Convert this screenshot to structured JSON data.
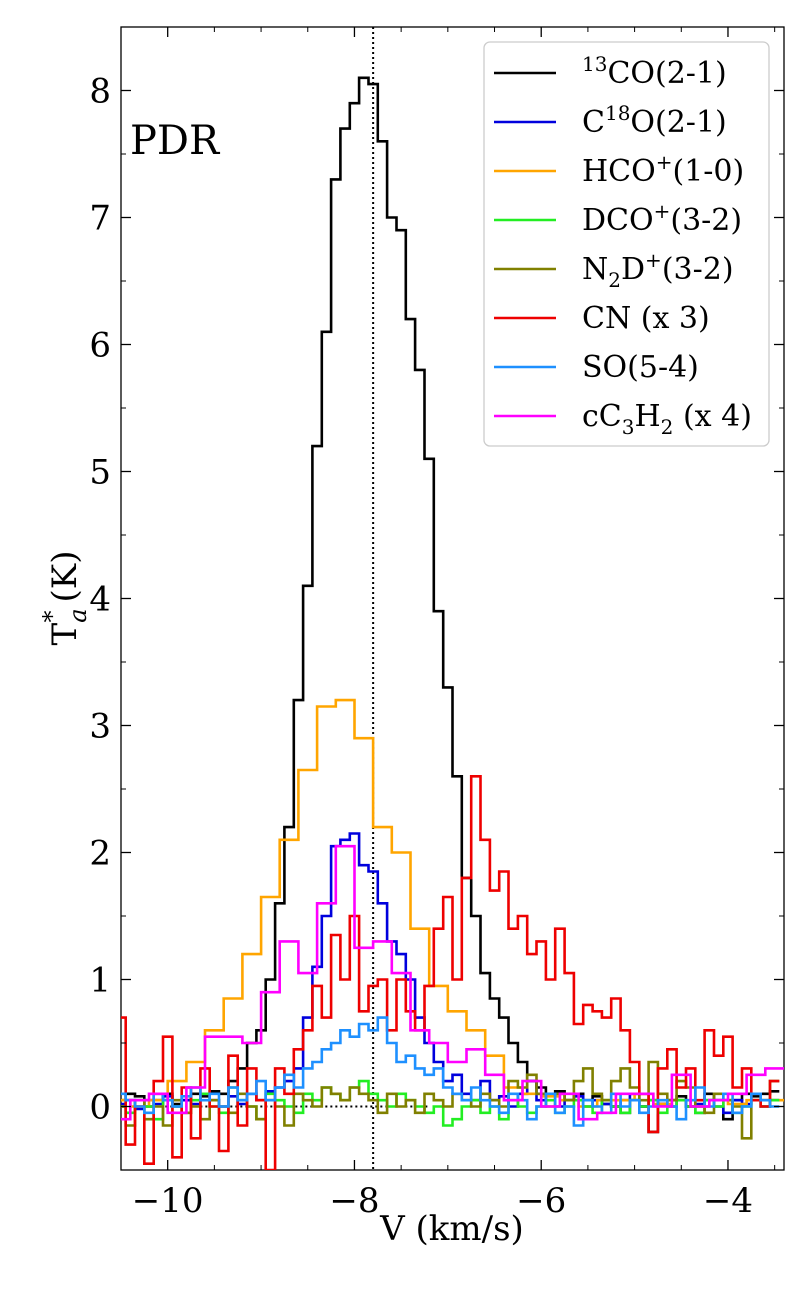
{
  "chart_data": {
    "type": "line",
    "panel_label": "PDR",
    "xlabel": "V (km/s)",
    "ylabel": "T",
    "ylabel_sup": "*",
    "ylabel_sub": "a",
    "ylabel_unit": "(K)",
    "xlim": [
      -10.5,
      -3.4
    ],
    "ylim": [
      -0.5,
      8.5
    ],
    "x_ticks": [
      -10,
      -8,
      -6,
      -4
    ],
    "x_tick_labels": [
      "−10",
      "−8",
      "−6",
      "−4"
    ],
    "y_ticks": [
      0,
      1,
      2,
      3,
      4,
      5,
      6,
      7,
      8
    ],
    "y_tick_labels": [
      "0",
      "1",
      "2",
      "3",
      "4",
      "5",
      "6",
      "7",
      "8"
    ],
    "vline_x": -7.8,
    "legend_position": "top-right",
    "channel_width": 0.1,
    "series": [
      {
        "name": "13CO(2-1)",
        "legend": [
          "",
          "13",
          "CO(2-1)"
        ],
        "color": "#000000",
        "x": [
          -10.5,
          -10.4,
          -10.3,
          -10.2,
          -10.1,
          -10.0,
          -9.9,
          -9.8,
          -9.7,
          -9.6,
          -9.5,
          -9.4,
          -9.3,
          -9.2,
          -9.1,
          -9.0,
          -8.9,
          -8.8,
          -8.7,
          -8.6,
          -8.5,
          -8.4,
          -8.3,
          -8.2,
          -8.1,
          -8.0,
          -7.9,
          -7.8,
          -7.7,
          -7.6,
          -7.5,
          -7.4,
          -7.3,
          -7.2,
          -7.1,
          -7.0,
          -6.9,
          -6.8,
          -6.7,
          -6.6,
          -6.5,
          -6.4,
          -6.3,
          -6.2,
          -6.1,
          -6.0,
          -5.9,
          -5.8,
          -5.7,
          -5.6,
          -5.5,
          -5.4,
          -5.3,
          -5.2,
          -5.1,
          -5.0,
          -4.9,
          -4.8,
          -4.7,
          -4.6,
          -4.5,
          -4.4,
          -4.3,
          -4.2,
          -4.1,
          -4.0,
          -3.9,
          -3.8,
          -3.7,
          -3.6,
          -3.5
        ],
        "y": [
          0.05,
          0.1,
          0.08,
          0.0,
          0.05,
          0.1,
          0.02,
          0.05,
          0.1,
          0.08,
          0.12,
          0.1,
          0.2,
          0.3,
          0.5,
          0.6,
          1.0,
          1.6,
          2.2,
          3.2,
          4.1,
          5.2,
          6.1,
          7.3,
          7.7,
          7.9,
          8.1,
          8.05,
          7.6,
          7.0,
          6.9,
          6.2,
          5.8,
          5.1,
          3.9,
          3.3,
          2.6,
          1.8,
          1.5,
          1.05,
          0.85,
          0.7,
          0.5,
          0.35,
          0.2,
          0.15,
          0.1,
          0.12,
          0.05,
          0.1,
          0.05,
          0.08,
          0.02,
          0.0,
          -0.05,
          0.05,
          0.0,
          -0.2,
          0.02,
          0.05,
          0.08,
          0.0,
          -0.05,
          0.1,
          0.05,
          -0.1,
          0.05,
          0.1,
          0.08,
          0.1,
          0.12
        ]
      },
      {
        "name": "C18O(2-1)",
        "legend": [
          "C",
          "18",
          "O(2-1)"
        ],
        "color": "#0000dd",
        "x": [
          -10.5,
          -10.4,
          -10.3,
          -10.2,
          -10.1,
          -10.0,
          -9.9,
          -9.8,
          -9.7,
          -9.6,
          -9.5,
          -9.4,
          -9.3,
          -9.2,
          -9.1,
          -9.0,
          -8.9,
          -8.8,
          -8.7,
          -8.6,
          -8.5,
          -8.4,
          -8.3,
          -8.2,
          -8.1,
          -8.0,
          -7.9,
          -7.8,
          -7.7,
          -7.6,
          -7.5,
          -7.4,
          -7.3,
          -7.2,
          -7.1,
          -7.0,
          -6.9,
          -6.8,
          -6.7,
          -6.6,
          -6.5,
          -6.4,
          -6.3,
          -6.2,
          -6.1,
          -6.0,
          -5.9,
          -5.8,
          -5.7,
          -5.6,
          -5.5,
          -5.4,
          -5.3,
          -5.2,
          -5.1,
          -5.0,
          -4.9,
          -4.8,
          -4.7,
          -4.6,
          -4.5,
          -4.4,
          -4.3,
          -4.2,
          -4.1,
          -4.0,
          -3.9,
          -3.8,
          -3.7,
          -3.6,
          -3.5
        ],
        "y": [
          0.02,
          0.05,
          -0.02,
          0.05,
          0.02,
          0.08,
          0.0,
          0.05,
          0.02,
          0.1,
          0.05,
          0.0,
          0.08,
          0.02,
          0.1,
          0.05,
          0.12,
          0.15,
          0.2,
          0.3,
          0.7,
          1.1,
          1.5,
          2.05,
          2.1,
          2.15,
          1.9,
          1.85,
          1.6,
          1.3,
          1.2,
          1.0,
          0.7,
          0.5,
          0.35,
          0.2,
          0.25,
          0.1,
          0.05,
          0.2,
          0.05,
          0.08,
          0.0,
          0.1,
          0.2,
          0.05,
          0.1,
          0.0,
          0.05,
          0.08,
          0.0,
          0.05,
          0.02,
          0.0,
          0.05,
          0.1,
          0.0,
          0.05,
          0.02,
          0.0,
          0.05,
          0.0,
          0.02,
          0.05,
          0.0,
          -0.05,
          0.05,
          0.02,
          0.05,
          0.0,
          0.05
        ]
      },
      {
        "name": "HCO+(1-0)",
        "legend": [
          "HCO",
          "+",
          "(1-0)"
        ],
        "color": "#ffa500",
        "x": [
          -10.5,
          -10.3,
          -10.1,
          -9.9,
          -9.7,
          -9.5,
          -9.3,
          -9.1,
          -8.9,
          -8.7,
          -8.5,
          -8.3,
          -8.1,
          -7.9,
          -7.7,
          -7.5,
          -7.3,
          -7.1,
          -6.9,
          -6.7,
          -6.5,
          -6.3,
          -6.1,
          -5.9,
          -5.7,
          -5.5,
          -5.3,
          -5.1,
          -4.9,
          -4.7,
          -4.5,
          -4.3,
          -4.1,
          -3.9,
          -3.7,
          -3.5
        ],
        "y": [
          0.05,
          0.0,
          0.05,
          0.2,
          0.35,
          0.6,
          0.85,
          1.2,
          1.65,
          2.1,
          2.65,
          3.15,
          3.2,
          2.9,
          2.2,
          2.0,
          1.4,
          0.95,
          0.75,
          0.6,
          0.4,
          0.15,
          0.1,
          0.08,
          0.05,
          0.0,
          0.05,
          0.05,
          0.1,
          0.02,
          0.05,
          0.0,
          0.05,
          0.02,
          0.05,
          0.05
        ]
      },
      {
        "name": "DCO+(3-2)",
        "legend": [
          "DCO",
          "+",
          "(3-2)"
        ],
        "color": "#22ee22",
        "x": [
          -10.5,
          -10.4,
          -10.3,
          -10.2,
          -10.1,
          -10.0,
          -9.9,
          -9.8,
          -9.7,
          -9.6,
          -9.5,
          -9.4,
          -9.3,
          -9.2,
          -9.1,
          -9.0,
          -8.9,
          -8.8,
          -8.7,
          -8.6,
          -8.5,
          -8.4,
          -8.3,
          -8.2,
          -8.1,
          -8.0,
          -7.9,
          -7.8,
          -7.7,
          -7.6,
          -7.5,
          -7.4,
          -7.3,
          -7.2,
          -7.1,
          -7.0,
          -6.9,
          -6.8,
          -6.7,
          -6.6,
          -6.5,
          -6.4,
          -6.3,
          -6.2,
          -6.1,
          -6.0,
          -5.9,
          -5.8,
          -5.7,
          -5.6,
          -5.5,
          -5.4,
          -5.3,
          -5.2,
          -5.1,
          -5.0,
          -4.9,
          -4.8,
          -4.7,
          -4.6,
          -4.5,
          -4.4,
          -4.3,
          -4.2,
          -4.1,
          -4.0,
          -3.9,
          -3.8,
          -3.7,
          -3.6,
          -3.5
        ],
        "y": [
          0.0,
          -0.05,
          0.05,
          0.0,
          -0.1,
          0.05,
          0.0,
          -0.05,
          0.05,
          0.1,
          0.0,
          -0.05,
          0.15,
          0.05,
          0.0,
          -0.1,
          0.1,
          0.05,
          0.0,
          -0.05,
          0.1,
          0.05,
          0.15,
          0.1,
          0.05,
          0.15,
          0.2,
          0.1,
          0.05,
          0.0,
          0.1,
          0.05,
          0.0,
          -0.05,
          0.0,
          -0.15,
          -0.1,
          0.0,
          0.05,
          -0.05,
          0.0,
          -0.1,
          0.05,
          0.0,
          -0.05,
          0.0,
          0.05,
          -0.05,
          0.0,
          0.05,
          0.0,
          -0.05,
          0.05,
          0.0,
          -0.05,
          0.05,
          0.0,
          0.05,
          -0.05,
          0.0,
          0.05,
          0.0,
          -0.05,
          0.05,
          0.0,
          0.05,
          -0.05,
          0.0,
          0.05,
          0.0,
          0.05
        ]
      },
      {
        "name": "N2D+(3-2)",
        "legend": [
          "N",
          "2",
          "D",
          "+",
          "(3-2)"
        ],
        "color": "#808000",
        "x": [
          -10.5,
          -10.4,
          -10.3,
          -10.2,
          -10.1,
          -10.0,
          -9.9,
          -9.8,
          -9.7,
          -9.6,
          -9.5,
          -9.4,
          -9.3,
          -9.2,
          -9.1,
          -9.0,
          -8.9,
          -8.8,
          -8.7,
          -8.6,
          -8.5,
          -8.4,
          -8.3,
          -8.2,
          -8.1,
          -8.0,
          -7.9,
          -7.8,
          -7.7,
          -7.6,
          -7.5,
          -7.4,
          -7.3,
          -7.2,
          -7.1,
          -7.0,
          -6.9,
          -6.8,
          -6.7,
          -6.6,
          -6.5,
          -6.4,
          -6.3,
          -6.2,
          -6.1,
          -6.0,
          -5.9,
          -5.8,
          -5.7,
          -5.6,
          -5.5,
          -5.4,
          -5.3,
          -5.2,
          -5.1,
          -5.0,
          -4.9,
          -4.8,
          -4.7,
          -4.6,
          -4.5,
          -4.4,
          -4.3,
          -4.2,
          -4.1,
          -4.0,
          -3.9,
          -3.8,
          -3.7,
          -3.6,
          -3.5
        ],
        "y": [
          0.0,
          -0.15,
          0.05,
          -0.1,
          0.0,
          -0.15,
          0.05,
          -0.05,
          0.0,
          -0.1,
          0.05,
          0.0,
          -0.05,
          0.1,
          0.0,
          -0.1,
          0.05,
          0.0,
          -0.15,
          0.1,
          0.05,
          0.0,
          0.15,
          0.1,
          0.05,
          0.15,
          0.1,
          0.05,
          -0.05,
          0.1,
          0.0,
          0.05,
          -0.05,
          0.1,
          0.05,
          0.0,
          0.1,
          0.05,
          0.0,
          0.1,
          0.05,
          0.0,
          0.2,
          0.15,
          0.25,
          0.1,
          0.0,
          0.1,
          0.05,
          0.2,
          0.3,
          0.1,
          0.05,
          0.2,
          0.3,
          0.15,
          0.05,
          0.35,
          0.1,
          0.05,
          0.2,
          0.15,
          0.0,
          -0.05,
          0.1,
          0.05,
          0.0,
          -0.25,
          0.1,
          0.05,
          0.2
        ]
      },
      {
        "name": "CN (x 3)",
        "legend": [
          "CN (x 3)"
        ],
        "color": "#ee0000",
        "x": [
          -10.5,
          -10.4,
          -10.3,
          -10.2,
          -10.1,
          -10.0,
          -9.9,
          -9.8,
          -9.7,
          -9.6,
          -9.5,
          -9.4,
          -9.3,
          -9.2,
          -9.1,
          -9.0,
          -8.9,
          -8.8,
          -8.7,
          -8.6,
          -8.5,
          -8.4,
          -8.3,
          -8.2,
          -8.1,
          -8.0,
          -7.9,
          -7.8,
          -7.7,
          -7.6,
          -7.5,
          -7.4,
          -7.3,
          -7.2,
          -7.1,
          -7.0,
          -6.9,
          -6.8,
          -6.7,
          -6.6,
          -6.5,
          -6.4,
          -6.3,
          -6.2,
          -6.1,
          -6.0,
          -5.9,
          -5.8,
          -5.7,
          -5.6,
          -5.5,
          -5.4,
          -5.3,
          -5.2,
          -5.1,
          -5.0,
          -4.9,
          -4.8,
          -4.7,
          -4.6,
          -4.5,
          -4.4,
          -4.3,
          -4.2,
          -4.1,
          -4.0,
          -3.9,
          -3.8,
          -3.7,
          -3.6,
          -3.5
        ],
        "y": [
          0.7,
          -0.3,
          0.0,
          -0.45,
          0.2,
          0.55,
          -0.4,
          0.15,
          -0.25,
          0.3,
          0.0,
          -0.35,
          0.4,
          -0.15,
          0.3,
          0.05,
          -0.5,
          0.3,
          0.1,
          0.45,
          0.6,
          0.95,
          0.7,
          1.35,
          1.0,
          1.5,
          0.75,
          0.95,
          1.0,
          0.6,
          1.0,
          0.75,
          0.6,
          0.95,
          1.4,
          1.65,
          1.0,
          1.8,
          2.6,
          2.1,
          1.7,
          1.85,
          1.4,
          1.5,
          1.2,
          1.3,
          1.0,
          1.4,
          1.05,
          0.65,
          0.8,
          0.75,
          0.7,
          0.85,
          0.6,
          0.35,
          0.1,
          -0.2,
          0.3,
          0.45,
          0.15,
          0.3,
          0.05,
          0.6,
          0.4,
          0.55,
          0.15,
          0.3,
          0.05,
          0.0,
          0.2
        ]
      },
      {
        "name": "SO(5-4)",
        "legend": [
          "SO(5-4)"
        ],
        "color": "#1e90ff",
        "x": [
          -10.5,
          -10.4,
          -10.3,
          -10.2,
          -10.1,
          -10.0,
          -9.9,
          -9.8,
          -9.7,
          -9.6,
          -9.5,
          -9.4,
          -9.3,
          -9.2,
          -9.1,
          -9.0,
          -8.9,
          -8.8,
          -8.7,
          -8.6,
          -8.5,
          -8.4,
          -8.3,
          -8.2,
          -8.1,
          -8.0,
          -7.9,
          -7.8,
          -7.7,
          -7.6,
          -7.5,
          -7.4,
          -7.3,
          -7.2,
          -7.1,
          -7.0,
          -6.9,
          -6.8,
          -6.7,
          -6.6,
          -6.5,
          -6.4,
          -6.3,
          -6.2,
          -6.1,
          -6.0,
          -5.9,
          -5.8,
          -5.7,
          -5.6,
          -5.5,
          -5.4,
          -5.3,
          -5.2,
          -5.1,
          -5.0,
          -4.9,
          -4.8,
          -4.7,
          -4.6,
          -4.5,
          -4.4,
          -4.3,
          -4.2,
          -4.1,
          -4.0,
          -3.9,
          -3.8,
          -3.7,
          -3.6,
          -3.5
        ],
        "y": [
          0.1,
          0.05,
          0.0,
          -0.05,
          0.1,
          0.05,
          0.0,
          0.08,
          0.15,
          0.05,
          0.1,
          0.0,
          0.15,
          0.05,
          0.1,
          0.2,
          0.05,
          0.15,
          0.25,
          0.15,
          0.3,
          0.35,
          0.45,
          0.5,
          0.6,
          0.55,
          0.65,
          0.6,
          0.7,
          0.5,
          0.35,
          0.4,
          0.3,
          0.25,
          0.3,
          0.15,
          0.1,
          0.05,
          0.15,
          0.05,
          0.0,
          -0.05,
          0.1,
          0.05,
          -0.1,
          0.0,
          0.1,
          -0.05,
          0.0,
          -0.15,
          0.05,
          0.0,
          -0.05,
          0.1,
          0.0,
          0.05,
          -0.05,
          0.0,
          0.05,
          0.0,
          -0.1,
          0.05,
          0.15,
          0.0,
          0.05,
          0.1,
          -0.05,
          0.0,
          0.1,
          0.05,
          0.0
        ]
      },
      {
        "name": "cC3H2 (x 4)",
        "legend": [
          "cC",
          "3",
          "H",
          "2",
          " (x 4)"
        ],
        "color": "#ff00ff",
        "x": [
          -10.5,
          -10.3,
          -10.1,
          -9.9,
          -9.7,
          -9.5,
          -9.3,
          -9.1,
          -8.9,
          -8.7,
          -8.5,
          -8.3,
          -8.1,
          -7.9,
          -7.7,
          -7.5,
          -7.3,
          -7.1,
          -6.9,
          -6.7,
          -6.5,
          -6.3,
          -6.1,
          -5.9,
          -5.7,
          -5.5,
          -5.3,
          -5.1,
          -4.9,
          -4.7,
          -4.5,
          -4.3,
          -4.1,
          -3.9,
          -3.7,
          -3.5
        ],
        "y": [
          -0.1,
          0.05,
          0.1,
          -0.05,
          0.15,
          0.55,
          0.55,
          0.5,
          0.9,
          1.3,
          1.05,
          1.6,
          2.05,
          1.25,
          1.3,
          1.05,
          0.6,
          0.5,
          0.35,
          0.45,
          0.25,
          0.05,
          0.2,
          0.0,
          0.1,
          -0.1,
          -0.05,
          0.1,
          0.1,
          0.0,
          0.25,
          0.0,
          0.05,
          0.1,
          0.25,
          0.3
        ]
      }
    ]
  }
}
